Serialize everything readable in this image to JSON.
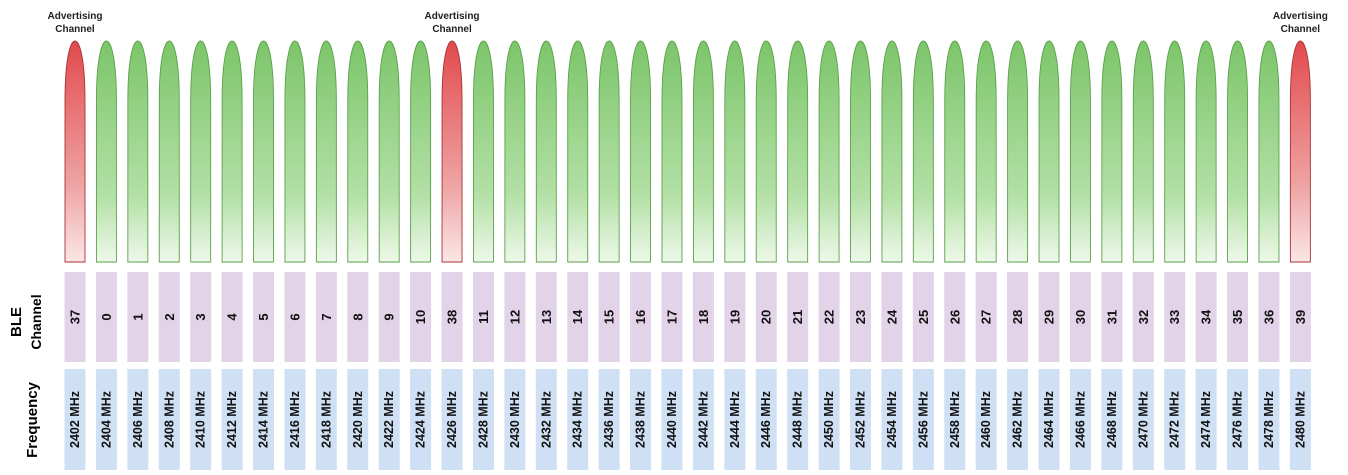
{
  "row_titles": {
    "ble": "BLE",
    "channel": "Channel",
    "frequency": "Frequency"
  },
  "advertising_label": {
    "line1": "Advertising",
    "line2": "Channel"
  },
  "colors": {
    "data_channel": "#8fce7e",
    "advertising_channel": "#e4595b",
    "channel_cell": "#e2d3e8",
    "frequency_cell": "#cfdff4"
  },
  "channels": [
    {
      "channel": "37",
      "frequency": "2402 MHz",
      "type": "advertising"
    },
    {
      "channel": "0",
      "frequency": "2404 MHz",
      "type": "data"
    },
    {
      "channel": "1",
      "frequency": "2406 MHz",
      "type": "data"
    },
    {
      "channel": "2",
      "frequency": "2408 MHz",
      "type": "data"
    },
    {
      "channel": "3",
      "frequency": "2410 MHz",
      "type": "data"
    },
    {
      "channel": "4",
      "frequency": "2412 MHz",
      "type": "data"
    },
    {
      "channel": "5",
      "frequency": "2414 MHz",
      "type": "data"
    },
    {
      "channel": "6",
      "frequency": "2416 MHz",
      "type": "data"
    },
    {
      "channel": "7",
      "frequency": "2418 MHz",
      "type": "data"
    },
    {
      "channel": "8",
      "frequency": "2420 MHz",
      "type": "data"
    },
    {
      "channel": "9",
      "frequency": "2422 MHz",
      "type": "data"
    },
    {
      "channel": "10",
      "frequency": "2424 MHz",
      "type": "data"
    },
    {
      "channel": "38",
      "frequency": "2426 MHz",
      "type": "advertising"
    },
    {
      "channel": "11",
      "frequency": "2428 MHz",
      "type": "data"
    },
    {
      "channel": "12",
      "frequency": "2430 MHz",
      "type": "data"
    },
    {
      "channel": "13",
      "frequency": "2432 MHz",
      "type": "data"
    },
    {
      "channel": "14",
      "frequency": "2434 MHz",
      "type": "data"
    },
    {
      "channel": "15",
      "frequency": "2436 MHz",
      "type": "data"
    },
    {
      "channel": "16",
      "frequency": "2438 MHz",
      "type": "data"
    },
    {
      "channel": "17",
      "frequency": "2440 MHz",
      "type": "data"
    },
    {
      "channel": "18",
      "frequency": "2442 MHz",
      "type": "data"
    },
    {
      "channel": "19",
      "frequency": "2444 MHz",
      "type": "data"
    },
    {
      "channel": "20",
      "frequency": "2446 MHz",
      "type": "data"
    },
    {
      "channel": "21",
      "frequency": "2448 MHz",
      "type": "data"
    },
    {
      "channel": "22",
      "frequency": "2450 MHz",
      "type": "data"
    },
    {
      "channel": "23",
      "frequency": "2452 MHz",
      "type": "data"
    },
    {
      "channel": "24",
      "frequency": "2454 MHz",
      "type": "data"
    },
    {
      "channel": "25",
      "frequency": "2456 MHz",
      "type": "data"
    },
    {
      "channel": "26",
      "frequency": "2458 MHz",
      "type": "data"
    },
    {
      "channel": "27",
      "frequency": "2460 MHz",
      "type": "data"
    },
    {
      "channel": "28",
      "frequency": "2462 MHz",
      "type": "data"
    },
    {
      "channel": "29",
      "frequency": "2464 MHz",
      "type": "data"
    },
    {
      "channel": "30",
      "frequency": "2466 MHz",
      "type": "data"
    },
    {
      "channel": "31",
      "frequency": "2468 MHz",
      "type": "data"
    },
    {
      "channel": "32",
      "frequency": "2470 MHz",
      "type": "data"
    },
    {
      "channel": "33",
      "frequency": "2472 MHz",
      "type": "data"
    },
    {
      "channel": "34",
      "frequency": "2474 MHz",
      "type": "data"
    },
    {
      "channel": "35",
      "frequency": "2476 MHz",
      "type": "data"
    },
    {
      "channel": "36",
      "frequency": "2478 MHz",
      "type": "data"
    },
    {
      "channel": "39",
      "frequency": "2480 MHz",
      "type": "advertising"
    }
  ]
}
